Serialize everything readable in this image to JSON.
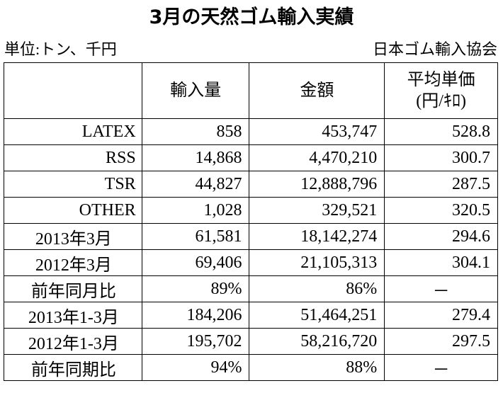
{
  "header": {
    "title": "3月の天然ゴム輸入実績",
    "unit": "単位:トン、千円",
    "source": "日本ゴム輸入協会"
  },
  "table": {
    "columns": [
      "",
      "輸入量",
      "金額",
      [
        "平均単価",
        "(円/ｷﾛ)"
      ]
    ],
    "rows": [
      [
        "LATEX",
        "858",
        "453,747",
        "528.8"
      ],
      [
        "RSS",
        "14,868",
        "4,470,210",
        "300.7"
      ],
      [
        "TSR",
        "44,827",
        "12,888,796",
        "287.5"
      ],
      [
        "OTHER",
        "1,028",
        "329,521",
        "320.5"
      ],
      [
        "2013年3月",
        "61,581",
        "18,142,274",
        "294.6"
      ],
      [
        "2012年3月",
        "69,406",
        "21,105,313",
        "304.1"
      ],
      [
        "前年同月比",
        "89%",
        "86%",
        "－"
      ],
      [
        "2013年1-3月",
        "184,206",
        "51,464,251",
        "279.4"
      ],
      [
        "2012年1-3月",
        "195,702",
        "58,216,720",
        "297.5"
      ],
      [
        "前年同期比",
        "94%",
        "88%",
        "－"
      ]
    ]
  }
}
